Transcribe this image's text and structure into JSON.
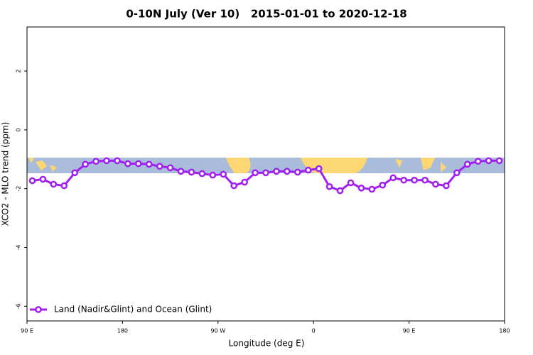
{
  "chart_data": {
    "type": "line",
    "title": "0-10N July (Ver 10)   2015-01-01 to 2020-12-18",
    "xlabel": "Longitude (deg E)",
    "ylabel": "XCO2 - MLO trend (ppm)",
    "x": [
      95,
      105,
      115,
      125,
      135,
      145,
      155,
      165,
      175,
      185,
      195,
      205,
      215,
      225,
      235,
      245,
      255,
      265,
      275,
      285,
      295,
      305,
      315,
      325,
      335,
      345,
      355,
      365,
      375,
      385,
      395,
      405,
      415,
      425,
      435,
      445,
      455,
      465,
      475,
      485,
      495,
      505,
      515,
      525,
      535
    ],
    "series": [
      {
        "name": "Land (Nadir&Glint) and Ocean (Glint)",
        "color": "#a020f0",
        "values": [
          -1.73,
          -1.68,
          -1.85,
          -1.9,
          -1.46,
          -1.17,
          -1.07,
          -1.05,
          -1.05,
          -1.15,
          -1.15,
          -1.17,
          -1.24,
          -1.29,
          -1.41,
          -1.44,
          -1.49,
          -1.54,
          -1.51,
          -1.9,
          -1.78,
          -1.46,
          -1.46,
          -1.41,
          -1.41,
          -1.44,
          -1.37,
          -1.32,
          -1.93,
          -2.07,
          -1.8,
          -1.98,
          -2.02,
          -1.88,
          -1.63,
          -1.71,
          -1.71,
          -1.71,
          -1.85,
          -1.9,
          -1.46,
          -1.17,
          -1.07,
          -1.05,
          -1.05
        ]
      }
    ],
    "xlim": [
      90,
      540
    ],
    "xticks": [
      {
        "value": 90,
        "label": "90 E"
      },
      180,
      {
        "value": 270,
        "label": "90 W"
      },
      {
        "value": 360,
        "label": "0"
      },
      {
        "value": 450,
        "label": "90 E"
      },
      {
        "value": 540,
        "label": "180"
      }
    ],
    "ylim": [
      -6.5,
      3.5
    ],
    "yticks": [
      2,
      0,
      -2,
      -4,
      -6
    ],
    "legend": "bottom-left"
  }
}
